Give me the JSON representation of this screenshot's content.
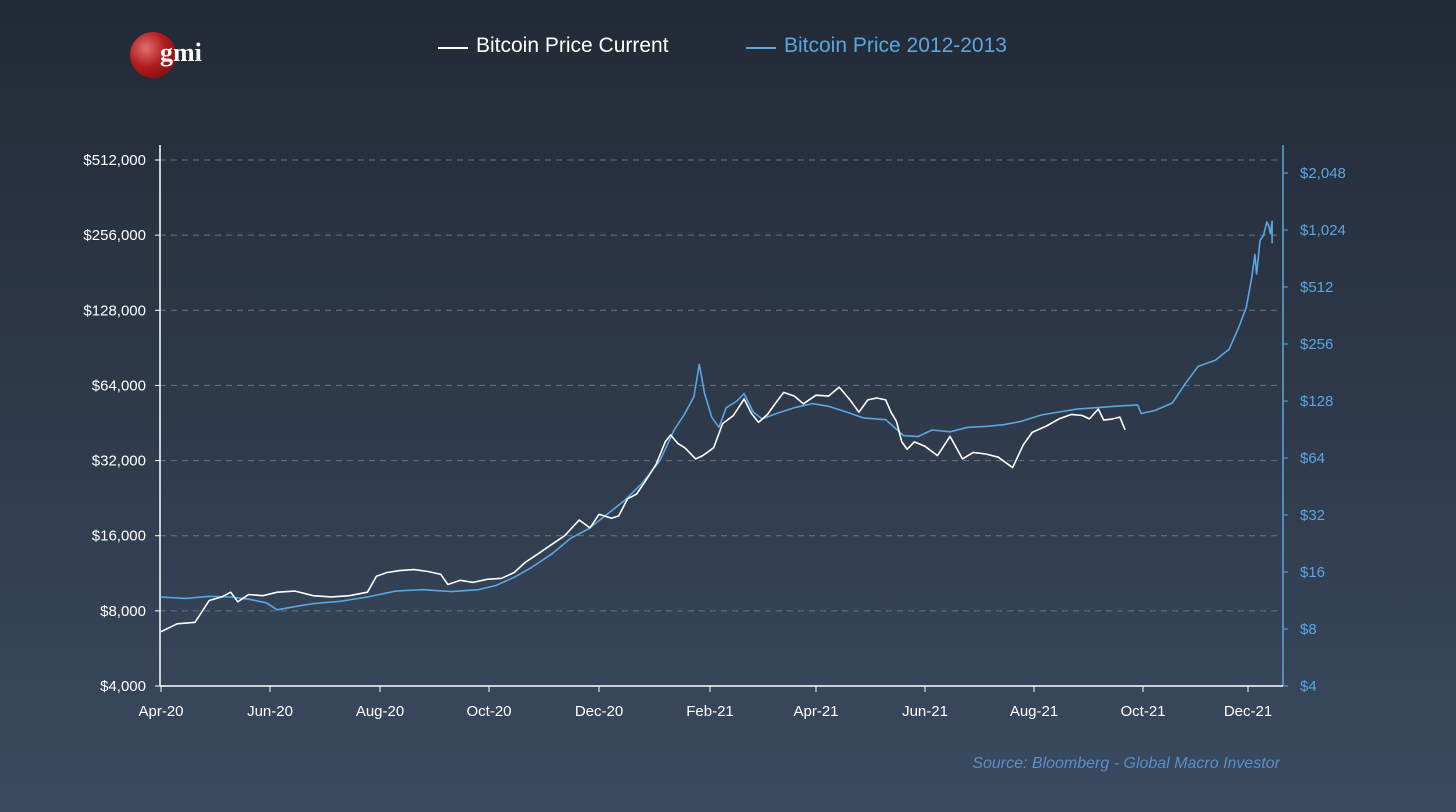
{
  "logo": {
    "text": "gmi"
  },
  "source": "Source: Bloomberg - Global Macro Investor",
  "colors": {
    "current": "#ffffff",
    "historic": "#5ba6e0",
    "grid": "#6a7585",
    "axis_left": "#ffffff",
    "axis_right": "#5ba6e0"
  },
  "chart_data": {
    "type": "line",
    "title": "",
    "xlabel": "",
    "ylabel": "",
    "x_ticks": [
      "Apr-20",
      "Jun-20",
      "Aug-20",
      "Oct-20",
      "Dec-20",
      "Feb-21",
      "Apr-21",
      "Jun-21",
      "Aug-21",
      "Oct-21",
      "Dec-21"
    ],
    "x_range": [
      "2020-04-01",
      "2021-12-15"
    ],
    "y_left": {
      "scale": "log2",
      "ticks": [
        4000,
        8000,
        16000,
        32000,
        64000,
        128000,
        256000,
        512000
      ],
      "tick_labels": [
        "$4,000",
        "$8,000",
        "$16,000",
        "$32,000",
        "$64,000",
        "$128,000",
        "$256,000",
        "$512,000"
      ],
      "range": [
        4000,
        512000
      ]
    },
    "y_right": {
      "scale": "log2",
      "ticks": [
        4,
        8,
        16,
        32,
        64,
        128,
        256,
        512,
        1024,
        2048
      ],
      "tick_labels": [
        "$4",
        "$8",
        "$16",
        "$32",
        "$64",
        "$128",
        "$256",
        "$512",
        "$1,024",
        "$2,048"
      ],
      "range": [
        4,
        2900
      ]
    },
    "grid": "horizontal-dashed",
    "legend_position": "top-center",
    "series": [
      {
        "name": "Bitcoin Price Current",
        "axis": "left",
        "color": "#ffffff",
        "points": [
          [
            "2020-04-01",
            6600
          ],
          [
            "2020-04-10",
            7100
          ],
          [
            "2020-04-20",
            7200
          ],
          [
            "2020-04-28",
            8800
          ],
          [
            "2020-05-05",
            9100
          ],
          [
            "2020-05-10",
            9500
          ],
          [
            "2020-05-14",
            8700
          ],
          [
            "2020-05-20",
            9300
          ],
          [
            "2020-05-28",
            9200
          ],
          [
            "2020-06-05",
            9500
          ],
          [
            "2020-06-15",
            9600
          ],
          [
            "2020-06-25",
            9200
          ],
          [
            "2020-07-05",
            9100
          ],
          [
            "2020-07-15",
            9200
          ],
          [
            "2020-07-25",
            9500
          ],
          [
            "2020-07-30",
            11000
          ],
          [
            "2020-08-05",
            11400
          ],
          [
            "2020-08-12",
            11600
          ],
          [
            "2020-08-20",
            11700
          ],
          [
            "2020-08-28",
            11500
          ],
          [
            "2020-09-04",
            11200
          ],
          [
            "2020-09-08",
            10200
          ],
          [
            "2020-09-15",
            10600
          ],
          [
            "2020-09-22",
            10400
          ],
          [
            "2020-09-30",
            10700
          ],
          [
            "2020-10-08",
            10800
          ],
          [
            "2020-10-15",
            11400
          ],
          [
            "2020-10-21",
            12500
          ],
          [
            "2020-10-28",
            13500
          ],
          [
            "2020-11-05",
            14800
          ],
          [
            "2020-11-12",
            16000
          ],
          [
            "2020-11-20",
            18500
          ],
          [
            "2020-11-26",
            17200
          ],
          [
            "2020-12-01",
            19500
          ],
          [
            "2020-12-08",
            18800
          ],
          [
            "2020-12-12",
            19200
          ],
          [
            "2020-12-17",
            22500
          ],
          [
            "2020-12-22",
            23500
          ],
          [
            "2020-12-27",
            26500
          ],
          [
            "2021-01-02",
            31000
          ],
          [
            "2021-01-07",
            38000
          ],
          [
            "2021-01-10",
            40500
          ],
          [
            "2021-01-14",
            37500
          ],
          [
            "2021-01-18",
            36000
          ],
          [
            "2021-01-24",
            32500
          ],
          [
            "2021-01-28",
            33500
          ],
          [
            "2021-02-03",
            36000
          ],
          [
            "2021-02-08",
            45000
          ],
          [
            "2021-02-14",
            48500
          ],
          [
            "2021-02-20",
            56500
          ],
          [
            "2021-02-24",
            49500
          ],
          [
            "2021-02-28",
            45500
          ],
          [
            "2021-03-05",
            49000
          ],
          [
            "2021-03-10",
            55000
          ],
          [
            "2021-03-14",
            60000
          ],
          [
            "2021-03-20",
            58000
          ],
          [
            "2021-03-25",
            54000
          ],
          [
            "2021-04-01",
            58500
          ],
          [
            "2021-04-08",
            58000
          ],
          [
            "2021-04-14",
            63000
          ],
          [
            "2021-04-20",
            56000
          ],
          [
            "2021-04-25",
            50000
          ],
          [
            "2021-04-30",
            56000
          ],
          [
            "2021-05-05",
            57000
          ],
          [
            "2021-05-10",
            56000
          ],
          [
            "2021-05-13",
            50000
          ],
          [
            "2021-05-16",
            46000
          ],
          [
            "2021-05-19",
            38000
          ],
          [
            "2021-05-22",
            35500
          ],
          [
            "2021-05-26",
            38000
          ],
          [
            "2021-06-01",
            36500
          ],
          [
            "2021-06-08",
            33500
          ],
          [
            "2021-06-15",
            40000
          ],
          [
            "2021-06-22",
            32500
          ],
          [
            "2021-06-28",
            34500
          ],
          [
            "2021-07-05",
            34000
          ],
          [
            "2021-07-12",
            33000
          ],
          [
            "2021-07-20",
            30000
          ],
          [
            "2021-07-26",
            37000
          ],
          [
            "2021-07-31",
            41500
          ],
          [
            "2021-08-08",
            44000
          ],
          [
            "2021-08-15",
            47000
          ],
          [
            "2021-08-22",
            49000
          ],
          [
            "2021-08-28",
            48500
          ],
          [
            "2021-09-01",
            47000
          ],
          [
            "2021-09-06",
            51500
          ],
          [
            "2021-09-09",
            46500
          ],
          [
            "2021-09-14",
            47000
          ],
          [
            "2021-09-18",
            47800
          ],
          [
            "2021-09-21",
            42500
          ]
        ]
      },
      {
        "name": "Bitcoin Price 2012-2013",
        "axis": "right",
        "color": "#5ba6e0",
        "points": [
          [
            "2020-04-01",
            11.8
          ],
          [
            "2020-04-15",
            11.6
          ],
          [
            "2020-04-28",
            11.9
          ],
          [
            "2020-05-10",
            11.8
          ],
          [
            "2020-05-20",
            11.5
          ],
          [
            "2020-05-30",
            11.0
          ],
          [
            "2020-06-05",
            10.1
          ],
          [
            "2020-06-15",
            10.5
          ],
          [
            "2020-06-25",
            10.9
          ],
          [
            "2020-07-10",
            11.2
          ],
          [
            "2020-07-25",
            11.8
          ],
          [
            "2020-08-10",
            12.7
          ],
          [
            "2020-08-25",
            12.9
          ],
          [
            "2020-09-10",
            12.6
          ],
          [
            "2020-09-25",
            12.9
          ],
          [
            "2020-10-05",
            13.6
          ],
          [
            "2020-10-15",
            15.0
          ],
          [
            "2020-10-25",
            17.0
          ],
          [
            "2020-11-05",
            20.0
          ],
          [
            "2020-11-15",
            24.0
          ],
          [
            "2020-11-25",
            27.0
          ],
          [
            "2020-12-05",
            32.0
          ],
          [
            "2020-12-15",
            38.0
          ],
          [
            "2020-12-25",
            47.0
          ],
          [
            "2021-01-04",
            62.0
          ],
          [
            "2021-01-12",
            90.0
          ],
          [
            "2021-01-18",
            110.0
          ],
          [
            "2021-01-23",
            135.0
          ],
          [
            "2021-01-26",
            200.0
          ],
          [
            "2021-01-29",
            140.0
          ],
          [
            "2021-02-02",
            105.0
          ],
          [
            "2021-02-06",
            93.0
          ],
          [
            "2021-02-10",
            118.0
          ],
          [
            "2021-02-16",
            128.0
          ],
          [
            "2021-02-20",
            140.0
          ],
          [
            "2021-02-25",
            112.0
          ],
          [
            "2021-03-02",
            103.0
          ],
          [
            "2021-03-10",
            110.0
          ],
          [
            "2021-03-20",
            118.0
          ],
          [
            "2021-03-30",
            124.0
          ],
          [
            "2021-04-08",
            120.0
          ],
          [
            "2021-04-18",
            112.0
          ],
          [
            "2021-04-28",
            104.0
          ],
          [
            "2021-05-10",
            102.0
          ],
          [
            "2021-05-20",
            84.0
          ],
          [
            "2021-05-28",
            83.0
          ],
          [
            "2021-06-05",
            90.0
          ],
          [
            "2021-06-15",
            88.0
          ],
          [
            "2021-06-25",
            93.0
          ],
          [
            "2021-07-05",
            94.0
          ],
          [
            "2021-07-15",
            96.0
          ],
          [
            "2021-07-25",
            100.0
          ],
          [
            "2021-08-05",
            108.0
          ],
          [
            "2021-08-15",
            112.0
          ],
          [
            "2021-08-25",
            116.0
          ],
          [
            "2021-09-05",
            118.0
          ],
          [
            "2021-09-15",
            120.0
          ],
          [
            "2021-09-28",
            122.0
          ],
          [
            "2021-09-30",
            110.0
          ],
          [
            "2021-10-08",
            114.0
          ],
          [
            "2021-10-18",
            125.0
          ],
          [
            "2021-10-26",
            160.0
          ],
          [
            "2021-11-02",
            195.0
          ],
          [
            "2021-11-12",
            210.0
          ],
          [
            "2021-11-20",
            240.0
          ],
          [
            "2021-11-26",
            320.0
          ],
          [
            "2021-11-30",
            400.0
          ],
          [
            "2021-12-03",
            560.0
          ],
          [
            "2021-12-05",
            760.0
          ],
          [
            "2021-12-06",
            600.0
          ],
          [
            "2021-12-08",
            900.0
          ],
          [
            "2021-12-10",
            960.0
          ],
          [
            "2021-12-12",
            1130.0
          ],
          [
            "2021-12-13",
            1080.0
          ],
          [
            "2021-12-14",
            980.0
          ],
          [
            "2021-12-15",
            1140.0
          ],
          [
            "2021-12-15",
            870.0
          ]
        ]
      }
    ]
  }
}
